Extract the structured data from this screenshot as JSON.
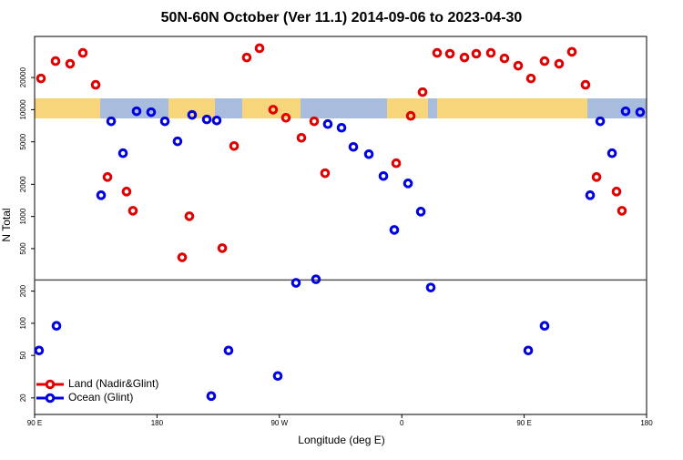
{
  "chart_data": {
    "type": "scatter",
    "title": "50N-60N October (Ver 11.1)   2014-09-06 to 2023-04-30",
    "x_label": "Longitude (deg E)",
    "y_label": "N Total",
    "xlim": [
      90,
      540
    ],
    "xticks": [
      {
        "value": 90,
        "label": "90 E"
      },
      180,
      {
        "value": 270,
        "label": "90 W"
      },
      {
        "value": 360,
        "label": "0"
      },
      {
        "value": 450,
        "label": "90 E"
      },
      {
        "value": 540,
        "label": "180"
      }
    ],
    "ylim": [
      14,
      48500
    ],
    "log_y": true,
    "yticks": [
      20,
      50,
      100,
      200,
      500,
      1000,
      2000,
      5000,
      10000,
      20000
    ],
    "hline": 254,
    "legend": "lower left",
    "series": [
      {
        "name": "Land (Nadir&Glint)",
        "color": "#e00000",
        "x": [
          94.7,
          105.4,
          116.1,
          125.5,
          134.9,
          143.6,
          157.6,
          162.3,
          198.5,
          203.8,
          228.0,
          236.7,
          246.0,
          255.4,
          265.4,
          274.8,
          286.2,
          295.6,
          303.6,
          355.9,
          366.6,
          375.3,
          386.0,
          395.4,
          406.1,
          414.8,
          425.5,
          435.5,
          445.6,
          455.0,
          465.0,
          475.7,
          485.1,
          495.1,
          503.2,
          517.9,
          521.9
        ],
        "values": [
          19600,
          28500,
          26900,
          34000,
          17100,
          2340,
          1710,
          1130,
          414,
          1005,
          505,
          4570,
          30800,
          37600,
          10000,
          8400,
          5450,
          7780,
          2540,
          3150,
          8750,
          14600,
          34000,
          33400,
          30800,
          33400,
          34000,
          30200,
          25800,
          19600,
          28500,
          26900,
          34800,
          17100,
          2340,
          1710,
          1130
        ]
      },
      {
        "name": "Ocean (Glint)",
        "color": "#0000e0",
        "x": [
          93.3,
          106.1,
          138.9,
          146.3,
          155.0,
          165.0,
          175.7,
          185.8,
          195.1,
          205.8,
          216.6,
          223.9,
          219.9,
          232.6,
          268.8,
          282.2,
          296.9,
          305.6,
          315.7,
          324.4,
          335.8,
          346.5,
          354.5,
          364.6,
          374.0,
          381.3,
          453.0,
          465.0,
          498.5,
          505.9,
          514.6,
          524.6,
          535.3
        ],
        "values": [
          55.6,
          94.6,
          1580,
          7780,
          3910,
          9660,
          9470,
          7780,
          5050,
          8930,
          8100,
          7920,
          20.8,
          55.6,
          32.1,
          239,
          258,
          7330,
          6770,
          4480,
          3830,
          2390,
          748,
          2040,
          1110,
          216,
          55.6,
          94.6,
          1580,
          7780,
          3910,
          9660,
          9470
        ]
      }
    ]
  }
}
